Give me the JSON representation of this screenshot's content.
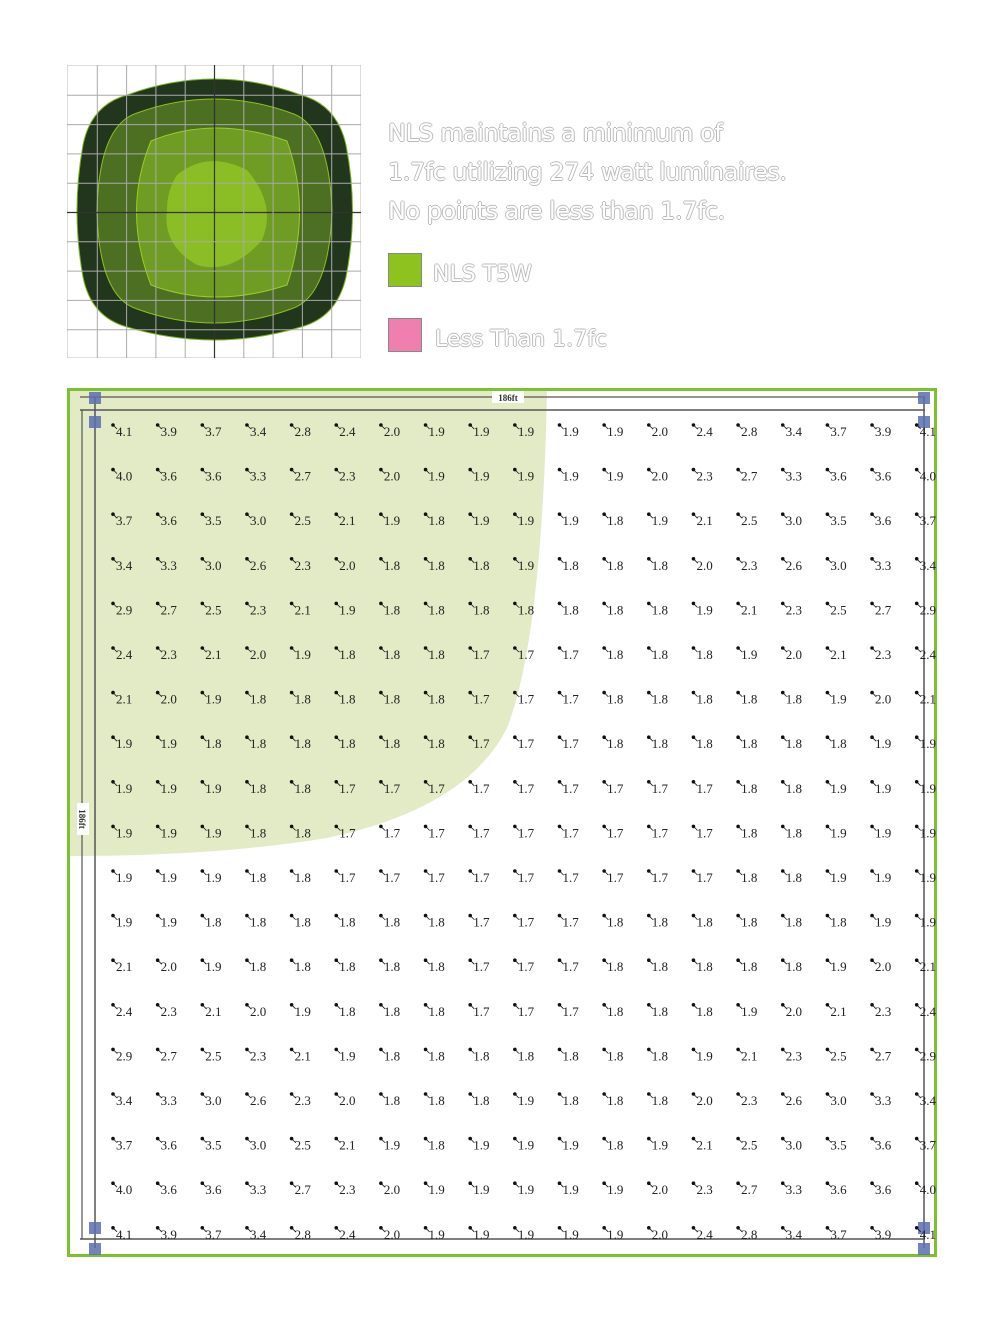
{
  "description_text": {
    "lines": [
      "NLS maintains a minimum of",
      "1.7fc utilizing 274 watt luminaires.",
      "No points are less than 1.7fc."
    ]
  },
  "legend": [
    {
      "label": "NLS T5W",
      "color": "#8dc21f"
    },
    {
      "label": "Less Than 1.7fc",
      "color": "#ee7fae"
    }
  ],
  "colors": {
    "frame_border": "#7dc12e",
    "coverage_fill": "#e2ebc6",
    "contour_levels": [
      "#22361d",
      "#4c6f22",
      "#6f9c22",
      "#8bbd24"
    ],
    "pole_marker": "#5b6fb0"
  },
  "plan": {
    "width_label": "186ft",
    "height_label": "186ft",
    "grid_values": [
      [
        "4.1",
        "3.9",
        "3.7",
        "3.4",
        "2.8",
        "2.4",
        "2.0",
        "1.9",
        "1.9",
        "1.9",
        "1.9",
        "1.9",
        "2.0",
        "2.4",
        "2.8",
        "3.4",
        "3.7",
        "3.9",
        "4.1"
      ],
      [
        "4.0",
        "3.6",
        "3.6",
        "3.3",
        "2.7",
        "2.3",
        "2.0",
        "1.9",
        "1.9",
        "1.9",
        "1.9",
        "1.9",
        "2.0",
        "2.3",
        "2.7",
        "3.3",
        "3.6",
        "3.6",
        "4.0"
      ],
      [
        "3.7",
        "3.6",
        "3.5",
        "3.0",
        "2.5",
        "2.1",
        "1.9",
        "1.8",
        "1.9",
        "1.9",
        "1.9",
        "1.8",
        "1.9",
        "2.1",
        "2.5",
        "3.0",
        "3.5",
        "3.6",
        "3.7"
      ],
      [
        "3.4",
        "3.3",
        "3.0",
        "2.6",
        "2.3",
        "2.0",
        "1.8",
        "1.8",
        "1.8",
        "1.9",
        "1.8",
        "1.8",
        "1.8",
        "2.0",
        "2.3",
        "2.6",
        "3.0",
        "3.3",
        "3.4"
      ],
      [
        "2.9",
        "2.7",
        "2.5",
        "2.3",
        "2.1",
        "1.9",
        "1.8",
        "1.8",
        "1.8",
        "1.8",
        "1.8",
        "1.8",
        "1.8",
        "1.9",
        "2.1",
        "2.3",
        "2.5",
        "2.7",
        "2.9"
      ],
      [
        "2.4",
        "2.3",
        "2.1",
        "2.0",
        "1.9",
        "1.8",
        "1.8",
        "1.8",
        "1.7",
        "1.7",
        "1.7",
        "1.8",
        "1.8",
        "1.8",
        "1.9",
        "2.0",
        "2.1",
        "2.3",
        "2.4"
      ],
      [
        "2.1",
        "2.0",
        "1.9",
        "1.8",
        "1.8",
        "1.8",
        "1.8",
        "1.8",
        "1.7",
        "1.7",
        "1.7",
        "1.8",
        "1.8",
        "1.8",
        "1.8",
        "1.8",
        "1.9",
        "2.0",
        "2.1"
      ],
      [
        "1.9",
        "1.9",
        "1.8",
        "1.8",
        "1.8",
        "1.8",
        "1.8",
        "1.8",
        "1.7",
        "1.7",
        "1.7",
        "1.8",
        "1.8",
        "1.8",
        "1.8",
        "1.8",
        "1.8",
        "1.9",
        "1.9"
      ],
      [
        "1.9",
        "1.9",
        "1.9",
        "1.8",
        "1.8",
        "1.7",
        "1.7",
        "1.7",
        "1.7",
        "1.7",
        "1.7",
        "1.7",
        "1.7",
        "1.7",
        "1.8",
        "1.8",
        "1.9",
        "1.9",
        "1.9"
      ],
      [
        "1.9",
        "1.9",
        "1.9",
        "1.8",
        "1.8",
        "1.7",
        "1.7",
        "1.7",
        "1.7",
        "1.7",
        "1.7",
        "1.7",
        "1.7",
        "1.7",
        "1.8",
        "1.8",
        "1.9",
        "1.9",
        "1.9"
      ],
      [
        "1.9",
        "1.9",
        "1.9",
        "1.8",
        "1.8",
        "1.7",
        "1.7",
        "1.7",
        "1.7",
        "1.7",
        "1.7",
        "1.7",
        "1.7",
        "1.7",
        "1.8",
        "1.8",
        "1.9",
        "1.9",
        "1.9"
      ],
      [
        "1.9",
        "1.9",
        "1.8",
        "1.8",
        "1.8",
        "1.8",
        "1.8",
        "1.8",
        "1.7",
        "1.7",
        "1.7",
        "1.8",
        "1.8",
        "1.8",
        "1.8",
        "1.8",
        "1.8",
        "1.9",
        "1.9"
      ],
      [
        "2.1",
        "2.0",
        "1.9",
        "1.8",
        "1.8",
        "1.8",
        "1.8",
        "1.8",
        "1.7",
        "1.7",
        "1.7",
        "1.8",
        "1.8",
        "1.8",
        "1.8",
        "1.8",
        "1.9",
        "2.0",
        "2.1"
      ],
      [
        "2.4",
        "2.3",
        "2.1",
        "2.0",
        "1.9",
        "1.8",
        "1.8",
        "1.8",
        "1.7",
        "1.7",
        "1.7",
        "1.8",
        "1.8",
        "1.8",
        "1.9",
        "2.0",
        "2.1",
        "2.3",
        "2.4"
      ],
      [
        "2.9",
        "2.7",
        "2.5",
        "2.3",
        "2.1",
        "1.9",
        "1.8",
        "1.8",
        "1.8",
        "1.8",
        "1.8",
        "1.8",
        "1.8",
        "1.9",
        "2.1",
        "2.3",
        "2.5",
        "2.7",
        "2.9"
      ],
      [
        "3.4",
        "3.3",
        "3.0",
        "2.6",
        "2.3",
        "2.0",
        "1.8",
        "1.8",
        "1.8",
        "1.9",
        "1.8",
        "1.8",
        "1.8",
        "2.0",
        "2.3",
        "2.6",
        "3.0",
        "3.3",
        "3.4"
      ],
      [
        "3.7",
        "3.6",
        "3.5",
        "3.0",
        "2.5",
        "2.1",
        "1.9",
        "1.8",
        "1.9",
        "1.9",
        "1.9",
        "1.8",
        "1.9",
        "2.1",
        "2.5",
        "3.0",
        "3.5",
        "3.6",
        "3.7"
      ],
      [
        "4.0",
        "3.6",
        "3.6",
        "3.3",
        "2.7",
        "2.3",
        "2.0",
        "1.9",
        "1.9",
        "1.9",
        "1.9",
        "1.9",
        "2.0",
        "2.3",
        "2.7",
        "3.3",
        "3.6",
        "3.6",
        "4.0"
      ],
      [
        "4.1",
        "3.9",
        "3.7",
        "3.4",
        "2.8",
        "2.4",
        "2.0",
        "1.9",
        "1.9",
        "1.9",
        "1.9",
        "1.9",
        "2.0",
        "2.4",
        "2.8",
        "3.4",
        "3.7",
        "3.9",
        "4.1"
      ]
    ]
  }
}
